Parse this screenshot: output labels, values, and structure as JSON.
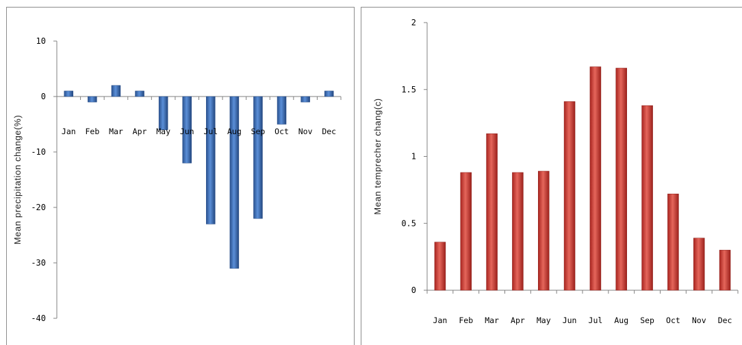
{
  "colors": {
    "blue_bar": "#2f5fa6",
    "blue_bar_light": "#5b8fd8",
    "red_bar": "#c0302b",
    "red_bar_light": "#e76a5f"
  },
  "chart_data": [
    {
      "type": "bar",
      "title": "",
      "xlabel": "",
      "ylabel": "Mean precipitation  change(%)",
      "ylim": [
        -40,
        10
      ],
      "yticks": [
        10,
        0,
        -10,
        -20,
        -30,
        -40
      ],
      "ytick_labels": [
        "10",
        "0",
        "-10",
        "-20",
        "-30",
        "-40"
      ],
      "categories": [
        "Jan",
        "Feb",
        "Mar",
        "Apr",
        "May",
        "Jun",
        "Jul",
        "Aug",
        "Sep",
        "Oct",
        "Nov",
        "Dec"
      ],
      "values": [
        1,
        -1,
        2,
        1,
        -6,
        -12,
        -23,
        -31,
        -22,
        -5,
        -1,
        1
      ],
      "grid": false,
      "legend": "none"
    },
    {
      "type": "bar",
      "title": "",
      "xlabel": "",
      "ylabel": "Mean temprecher chang(c)",
      "ylim": [
        0,
        2
      ],
      "yticks": [
        0,
        0.5,
        1,
        1.5,
        2
      ],
      "ytick_labels": [
        "0",
        "0.5",
        "1",
        "1.5",
        "2"
      ],
      "categories": [
        "Jan",
        "Feb",
        "Mar",
        "Apr",
        "May",
        "Jun",
        "Jul",
        "Aug",
        "Sep",
        "Oct",
        "Nov",
        "Dec"
      ],
      "values": [
        0.36,
        0.88,
        1.17,
        0.88,
        0.89,
        1.41,
        1.67,
        1.66,
        1.38,
        0.72,
        0.39,
        0.3
      ],
      "grid": false,
      "legend": "none"
    }
  ]
}
